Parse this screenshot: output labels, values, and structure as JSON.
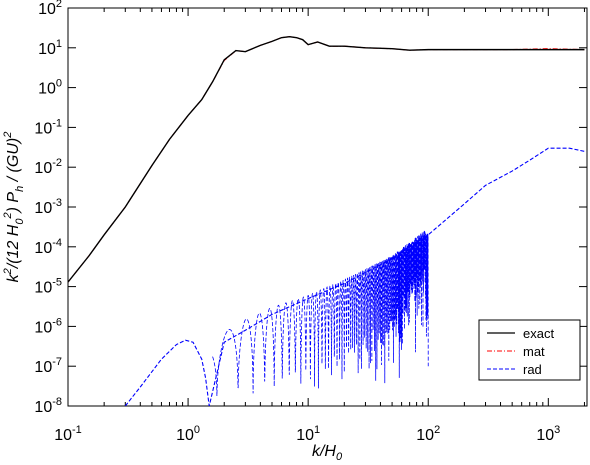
{
  "chart_data": {
    "type": "line",
    "title": "",
    "xlabel": {
      "main": "k/H",
      "sub": "0"
    },
    "ylabel": {
      "parts": [
        {
          "t": "k",
          "style": "italic"
        },
        {
          "t": "2",
          "style": "sup"
        },
        {
          "t": "/(12 ",
          "style": "italic"
        },
        {
          "t": "H",
          "style": "italic"
        },
        {
          "t": "0",
          "style": "sub"
        },
        {
          "t": "2",
          "style": "sup"
        },
        {
          "t": ") ",
          "style": "italic"
        },
        {
          "t": "P",
          "style": "italic"
        },
        {
          "t": "h",
          "style": "sub"
        },
        {
          "t": " / (",
          "style": "italic"
        },
        {
          "t": "GU",
          "style": "italic"
        },
        {
          "t": ")",
          "style": "italic"
        },
        {
          "t": "2",
          "style": "sup"
        }
      ]
    },
    "x_scale": "log",
    "y_scale": "log",
    "xlim": [
      0.1,
      2100
    ],
    "ylim": [
      1e-08,
      100
    ],
    "x_ticks": [
      {
        "base": "10",
        "exp": "-1",
        "value": 0.1
      },
      {
        "base": "10",
        "exp": "0",
        "value": 1
      },
      {
        "base": "10",
        "exp": "1",
        "value": 10
      },
      {
        "base": "10",
        "exp": "2",
        "value": 100
      },
      {
        "base": "10",
        "exp": "3",
        "value": 1000
      }
    ],
    "y_ticks": [
      {
        "base": "10",
        "exp": "-8",
        "value": 1e-08
      },
      {
        "base": "10",
        "exp": "-7",
        "value": 1e-07
      },
      {
        "base": "10",
        "exp": "-6",
        "value": 1e-06
      },
      {
        "base": "10",
        "exp": "-5",
        "value": 1e-05
      },
      {
        "base": "10",
        "exp": "-4",
        "value": 0.0001
      },
      {
        "base": "10",
        "exp": "-3",
        "value": 0.001
      },
      {
        "base": "10",
        "exp": "-2",
        "value": 0.01
      },
      {
        "base": "10",
        "exp": "-1",
        "value": 0.1
      },
      {
        "base": "10",
        "exp": "0",
        "value": 1
      },
      {
        "base": "10",
        "exp": "1",
        "value": 10
      },
      {
        "base": "10",
        "exp": "2",
        "value": 100
      }
    ],
    "legend_position": "bottom-right",
    "series": [
      {
        "name": "exact",
        "color": "#000000",
        "dash": "solid",
        "x": [
          0.1,
          0.15,
          0.2,
          0.3,
          0.5,
          0.7,
          1.0,
          1.3,
          1.6,
          2.0,
          2.5,
          3.0,
          4.0,
          5.0,
          6.0,
          7.0,
          8.0,
          9.0,
          10,
          12,
          15,
          20,
          30,
          50,
          70,
          100,
          200,
          500,
          1000,
          2000
        ],
        "y": [
          1.3e-05,
          6e-05,
          0.0002,
          0.001,
          0.011,
          0.05,
          0.2,
          0.5,
          1.4,
          5,
          8.5,
          8,
          11.5,
          14.5,
          18,
          19,
          18,
          16,
          12,
          14,
          11,
          11,
          10,
          9.5,
          8.7,
          9,
          9,
          9,
          9,
          9
        ]
      },
      {
        "name": "mat",
        "color": "#ff0000",
        "dash": "dashdot",
        "x": [
          0.1,
          0.15,
          0.2,
          0.3,
          0.5,
          0.7,
          1.0,
          1.3,
          1.6,
          2.0,
          2.5,
          3.0,
          4.0,
          5.0,
          6.0,
          7.0,
          8.0,
          9.0,
          10,
          12,
          15,
          20,
          30,
          50,
          70,
          100,
          200,
          500,
          1000,
          2000
        ],
        "y": [
          1.3e-05,
          6e-05,
          0.0002,
          0.001,
          0.011,
          0.05,
          0.2,
          0.5,
          1.4,
          4.8,
          8.5,
          8,
          11.5,
          14.5,
          18,
          19,
          18,
          16,
          12,
          14,
          11,
          11,
          10,
          9.5,
          8.7,
          9,
          9,
          9,
          9.5,
          9
        ]
      },
      {
        "name": "rad",
        "color": "#0000ff",
        "dash": "dashed",
        "x": [
          0.3,
          0.4,
          0.6,
          0.8,
          0.95,
          1.1,
          1.3,
          1.4,
          1.5,
          2,
          3,
          5,
          10,
          20,
          50,
          100,
          200,
          300,
          500,
          700,
          1000,
          1500,
          2000
        ],
        "y": [
          1e-08,
          3e-08,
          1.5e-07,
          3.5e-07,
          4.5e-07,
          4e-07,
          1.5e-07,
          5e-08,
          1e-08,
          4e-07,
          8e-07,
          2e-06,
          5e-06,
          1.2e-05,
          5e-05,
          0.0002,
          0.0012,
          0.0035,
          0.008,
          0.015,
          0.03,
          0.03,
          0.025
        ],
        "oscillating_envelope": {
          "x": [
            1.6,
            2,
            3,
            5,
            10,
            20,
            50,
            100
          ],
          "y_high": [
            4e-07,
            7e-07,
            1.5e-06,
            3e-06,
            6e-06,
            1.5e-05,
            6e-05,
            0.0003
          ],
          "y_low": [
            1e-08,
            1e-08,
            1e-08,
            1e-08,
            1e-08,
            1e-08,
            1e-08,
            1e-07
          ]
        }
      }
    ]
  }
}
